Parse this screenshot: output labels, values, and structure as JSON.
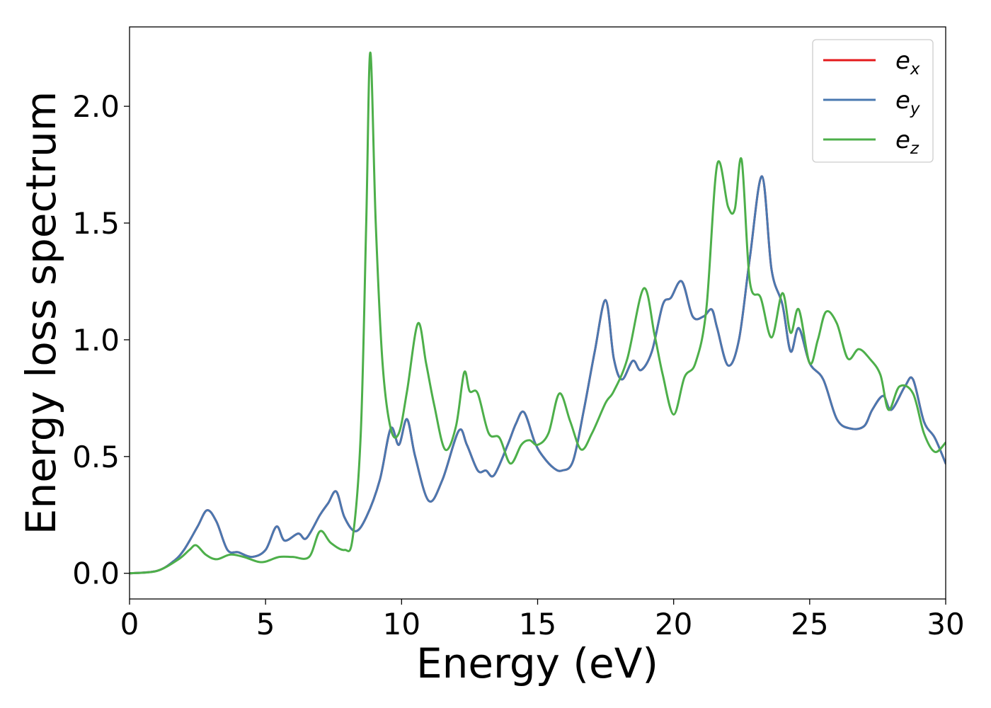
{
  "chart_data": {
    "type": "line",
    "title": "",
    "xlabel": "Energy (eV)",
    "ylabel": "Energy loss spectrum",
    "xlim": [
      0,
      30
    ],
    "ylim": [
      -0.11,
      2.34
    ],
    "xticks": [
      0,
      5,
      10,
      15,
      20,
      25,
      30
    ],
    "xtick_labels": [
      "0",
      "5",
      "10",
      "15",
      "20",
      "25",
      "30"
    ],
    "yticks": [
      0.0,
      0.5,
      1.0,
      1.5,
      2.0
    ],
    "ytick_labels": [
      "0.0",
      "0.5",
      "1.0",
      "1.5",
      "2.0"
    ],
    "grid": false,
    "legend_position": "top-right",
    "series": [
      {
        "name": "x",
        "color": "#e41a1c",
        "x": [
          0,
          1.0,
          1.6,
          2.0,
          2.5,
          2.85,
          3.2,
          3.6,
          4.0,
          4.5,
          5.0,
          5.4,
          5.7,
          6.2,
          6.5,
          7.0,
          7.3,
          7.6,
          7.9,
          8.3,
          8.7,
          9.2,
          9.6,
          9.9,
          10.2,
          10.5,
          11.0,
          11.5,
          12.1,
          12.4,
          12.8,
          13.1,
          13.4,
          13.9,
          14.2,
          14.5,
          14.9,
          15.2,
          15.6,
          15.9,
          16.3,
          16.7,
          17.1,
          17.5,
          17.8,
          18.1,
          18.5,
          18.8,
          19.2,
          19.6,
          19.9,
          20.3,
          20.7,
          21.1,
          21.4,
          21.6,
          22.0,
          22.4,
          22.8,
          23.25,
          23.6,
          24.0,
          24.3,
          24.6,
          25.0,
          25.5,
          26.0,
          26.5,
          27.0,
          27.3,
          27.7,
          28.0,
          28.5,
          28.8,
          29.2,
          29.6,
          30.0
        ],
        "y": [
          0.0,
          0.01,
          0.05,
          0.1,
          0.2,
          0.27,
          0.22,
          0.1,
          0.09,
          0.07,
          0.1,
          0.2,
          0.14,
          0.17,
          0.15,
          0.25,
          0.3,
          0.35,
          0.24,
          0.18,
          0.24,
          0.4,
          0.62,
          0.55,
          0.66,
          0.5,
          0.31,
          0.4,
          0.61,
          0.55,
          0.44,
          0.44,
          0.42,
          0.55,
          0.64,
          0.69,
          0.56,
          0.5,
          0.45,
          0.44,
          0.48,
          0.7,
          0.95,
          1.17,
          0.92,
          0.83,
          0.91,
          0.87,
          0.95,
          1.15,
          1.18,
          1.25,
          1.1,
          1.1,
          1.13,
          1.05,
          0.89,
          1.0,
          1.35,
          1.7,
          1.3,
          1.15,
          0.95,
          1.05,
          0.9,
          0.83,
          0.66,
          0.62,
          0.63,
          0.7,
          0.76,
          0.7,
          0.8,
          0.83,
          0.65,
          0.58,
          0.47
        ]
      },
      {
        "name": "y",
        "color": "#4a78b0",
        "x": [
          0,
          1.0,
          1.6,
          2.0,
          2.5,
          2.85,
          3.2,
          3.6,
          4.0,
          4.5,
          5.0,
          5.4,
          5.7,
          6.2,
          6.5,
          7.0,
          7.3,
          7.6,
          7.9,
          8.3,
          8.7,
          9.2,
          9.6,
          9.9,
          10.2,
          10.5,
          11.0,
          11.5,
          12.1,
          12.4,
          12.8,
          13.1,
          13.4,
          13.9,
          14.2,
          14.5,
          14.9,
          15.2,
          15.6,
          15.9,
          16.3,
          16.7,
          17.1,
          17.5,
          17.8,
          18.1,
          18.5,
          18.8,
          19.2,
          19.6,
          19.9,
          20.3,
          20.7,
          21.1,
          21.4,
          21.6,
          22.0,
          22.4,
          22.8,
          23.25,
          23.6,
          24.0,
          24.3,
          24.6,
          25.0,
          25.5,
          26.0,
          26.5,
          27.0,
          27.3,
          27.7,
          28.0,
          28.5,
          28.8,
          29.2,
          29.6,
          30.0
        ],
        "y": [
          0.0,
          0.01,
          0.05,
          0.1,
          0.2,
          0.27,
          0.22,
          0.1,
          0.09,
          0.07,
          0.1,
          0.2,
          0.14,
          0.17,
          0.15,
          0.25,
          0.3,
          0.35,
          0.24,
          0.18,
          0.24,
          0.4,
          0.62,
          0.55,
          0.66,
          0.5,
          0.31,
          0.4,
          0.61,
          0.55,
          0.44,
          0.44,
          0.42,
          0.55,
          0.64,
          0.69,
          0.56,
          0.5,
          0.45,
          0.44,
          0.48,
          0.7,
          0.95,
          1.17,
          0.92,
          0.83,
          0.91,
          0.87,
          0.95,
          1.15,
          1.18,
          1.25,
          1.1,
          1.1,
          1.13,
          1.05,
          0.89,
          1.0,
          1.35,
          1.7,
          1.3,
          1.15,
          0.95,
          1.05,
          0.9,
          0.83,
          0.66,
          0.62,
          0.63,
          0.7,
          0.76,
          0.7,
          0.8,
          0.83,
          0.65,
          0.58,
          0.47
        ]
      },
      {
        "name": "z",
        "color": "#4daf4a",
        "x": [
          0,
          1.0,
          1.8,
          2.2,
          2.45,
          2.8,
          3.2,
          3.7,
          4.2,
          4.7,
          5.0,
          5.5,
          6.0,
          6.6,
          7.0,
          7.4,
          7.9,
          8.2,
          8.5,
          8.7,
          8.85,
          9.05,
          9.3,
          9.6,
          9.9,
          10.2,
          10.6,
          10.9,
          11.2,
          11.6,
          12.0,
          12.3,
          12.5,
          12.8,
          13.2,
          13.6,
          14.0,
          14.4,
          14.7,
          15.0,
          15.4,
          15.8,
          16.2,
          16.6,
          17.0,
          17.5,
          17.8,
          18.3,
          18.9,
          19.3,
          19.6,
          20.0,
          20.4,
          20.8,
          21.2,
          21.6,
          22.0,
          22.25,
          22.5,
          22.8,
          23.2,
          23.6,
          24.0,
          24.3,
          24.6,
          25.0,
          25.3,
          25.6,
          26.0,
          26.4,
          26.8,
          27.2,
          27.6,
          27.9,
          28.3,
          28.8,
          29.2,
          29.6,
          30.0
        ],
        "y": [
          0.0,
          0.01,
          0.06,
          0.1,
          0.12,
          0.08,
          0.06,
          0.08,
          0.07,
          0.05,
          0.05,
          0.07,
          0.07,
          0.07,
          0.18,
          0.13,
          0.1,
          0.15,
          0.6,
          1.5,
          2.23,
          1.5,
          0.9,
          0.62,
          0.6,
          0.78,
          1.07,
          0.9,
          0.72,
          0.53,
          0.63,
          0.86,
          0.78,
          0.77,
          0.6,
          0.58,
          0.47,
          0.55,
          0.57,
          0.55,
          0.6,
          0.77,
          0.65,
          0.53,
          0.6,
          0.73,
          0.78,
          0.92,
          1.22,
          1.02,
          0.85,
          0.68,
          0.84,
          0.9,
          1.13,
          1.75,
          1.57,
          1.56,
          1.77,
          1.25,
          1.18,
          1.01,
          1.2,
          1.03,
          1.13,
          0.9,
          1.0,
          1.12,
          1.07,
          0.92,
          0.96,
          0.92,
          0.85,
          0.7,
          0.8,
          0.77,
          0.6,
          0.52,
          0.56
        ]
      }
    ]
  }
}
